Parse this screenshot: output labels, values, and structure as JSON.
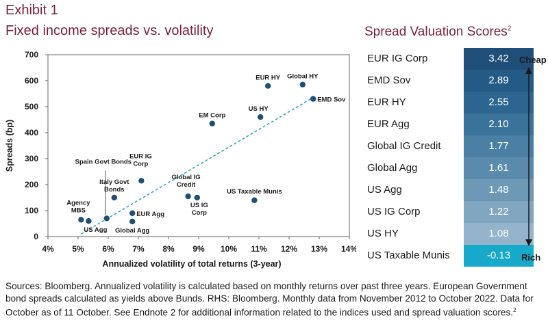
{
  "header": {
    "exhibit": "Exhibit 1",
    "title": "Fixed income spreads vs. volatility",
    "right_title": "Spread Valuation Scores",
    "right_title_sup": "2"
  },
  "chart_data": [
    {
      "type": "scatter",
      "title": "Fixed income spreads vs. volatility",
      "xlabel": "Annualized volatility of total returns (3-year)",
      "ylabel": "Spreads (bp)",
      "xlim": [
        4,
        14
      ],
      "ylim": [
        0,
        700
      ],
      "xticks": [
        "4%",
        "5%",
        "6%",
        "7%",
        "8%",
        "9%",
        "10%",
        "11%",
        "12%",
        "13%",
        "14%"
      ],
      "yticks": [
        "0",
        "100",
        "200",
        "300",
        "400",
        "500",
        "600",
        "700"
      ],
      "trendline": {
        "style": "dashed",
        "x": [
          5.1,
          12.8
        ],
        "y": [
          10,
          535
        ]
      },
      "points": [
        {
          "label": "Agency MBS",
          "x": 5.1,
          "y": 65
        },
        {
          "label": "US Agg",
          "x": 5.35,
          "y": 60
        },
        {
          "label": "Spain Govt Bonds",
          "x": 5.95,
          "y": 70
        },
        {
          "label": "Italy Govt Bonds",
          "x": 6.2,
          "y": 150
        },
        {
          "label": "EUR IG Corp",
          "x": 7.1,
          "y": 215
        },
        {
          "label": "EUR Agg",
          "x": 6.8,
          "y": 90
        },
        {
          "label": "Global Agg",
          "x": 6.8,
          "y": 58
        },
        {
          "label": "Global IG Credit",
          "x": 8.65,
          "y": 155
        },
        {
          "label": "US IG Corp",
          "x": 8.95,
          "y": 150
        },
        {
          "label": "EM Corp",
          "x": 9.45,
          "y": 435
        },
        {
          "label": "US HY",
          "x": 11.05,
          "y": 460
        },
        {
          "label": "EUR HY",
          "x": 11.3,
          "y": 580
        },
        {
          "label": "Global HY",
          "x": 12.45,
          "y": 585
        },
        {
          "label": "EMD Sov",
          "x": 12.8,
          "y": 530
        },
        {
          "label": "US Taxable Munis",
          "x": 10.85,
          "y": 140
        }
      ]
    },
    {
      "type": "table",
      "title": "Spread Valuation Scores",
      "rows": [
        {
          "name": "EUR IG Corp",
          "value": "3.42",
          "color": "#1f4e79"
        },
        {
          "name": "EMD Sov",
          "value": "2.89",
          "color": "#245a86"
        },
        {
          "name": "EUR HY",
          "value": "2.55",
          "color": "#2c6690"
        },
        {
          "name": "EUR Agg",
          "value": "2.10",
          "color": "#3a7399"
        },
        {
          "name": "Global IG Credit",
          "value": "1.77",
          "color": "#4b7fa3"
        },
        {
          "name": "Global Agg",
          "value": "1.61",
          "color": "#5b8bac"
        },
        {
          "name": "US Agg",
          "value": "1.48",
          "color": "#6d98b6"
        },
        {
          "name": "US IG Corp",
          "value": "1.22",
          "color": "#80a6c0"
        },
        {
          "name": "US HY",
          "value": "1.08",
          "color": "#94b4cb"
        },
        {
          "name": "US Taxable Munis",
          "value": "-0.13",
          "color": "#17a9c9"
        }
      ],
      "scale_top": "Cheap",
      "scale_bottom": "Rich"
    }
  ],
  "colors": {
    "title": "#7a1f3d",
    "point": "#1f4e79",
    "trend": "#2aa8c8"
  },
  "footnote": {
    "text": "Sources: Bloomberg. Annualized volatility is calculated based on monthly returns over past three years. European Government bond spreads calculated as yields above Bunds. RHS: Bloomberg. Monthly data from November 2012 to October 2022. Data for October as of 11 October. See Endnote 2 for additional information related to the indices used and spread valuation scores.",
    "sup": "2"
  }
}
